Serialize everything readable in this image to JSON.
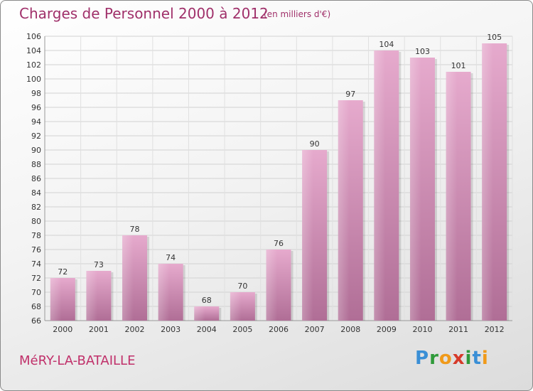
{
  "title": "Charges de Personnel 2000 à 2012",
  "subtitle": "(en milliers d'€)",
  "commune": "MéRY-LA-BATAILLE",
  "logo": {
    "p": "P",
    "r": "r",
    "o": "o",
    "x": "x",
    "i1": "i",
    "t": "t",
    "i2": "i"
  },
  "colors": {
    "bar_light": "#e6aacd",
    "bar_dark": "#b06e96",
    "text": "#333333",
    "title": "#a0306a"
  },
  "chart_data": {
    "type": "bar",
    "categories": [
      "2000",
      "2001",
      "2002",
      "2003",
      "2004",
      "2005",
      "2006",
      "2007",
      "2008",
      "2009",
      "2010",
      "2011",
      "2012"
    ],
    "values": [
      72,
      73,
      78,
      74,
      68,
      70,
      76,
      90,
      97,
      104,
      103,
      101,
      105
    ],
    "title": "Charges de Personnel 2000 à 2012",
    "subtitle": "(en milliers d'€)",
    "xlabel": "",
    "ylabel": "",
    "ylim": [
      66,
      106
    ],
    "yticks": [
      66,
      68,
      70,
      72,
      74,
      76,
      78,
      80,
      82,
      84,
      86,
      88,
      90,
      92,
      94,
      96,
      98,
      100,
      102,
      104,
      106
    ],
    "grid": true
  }
}
